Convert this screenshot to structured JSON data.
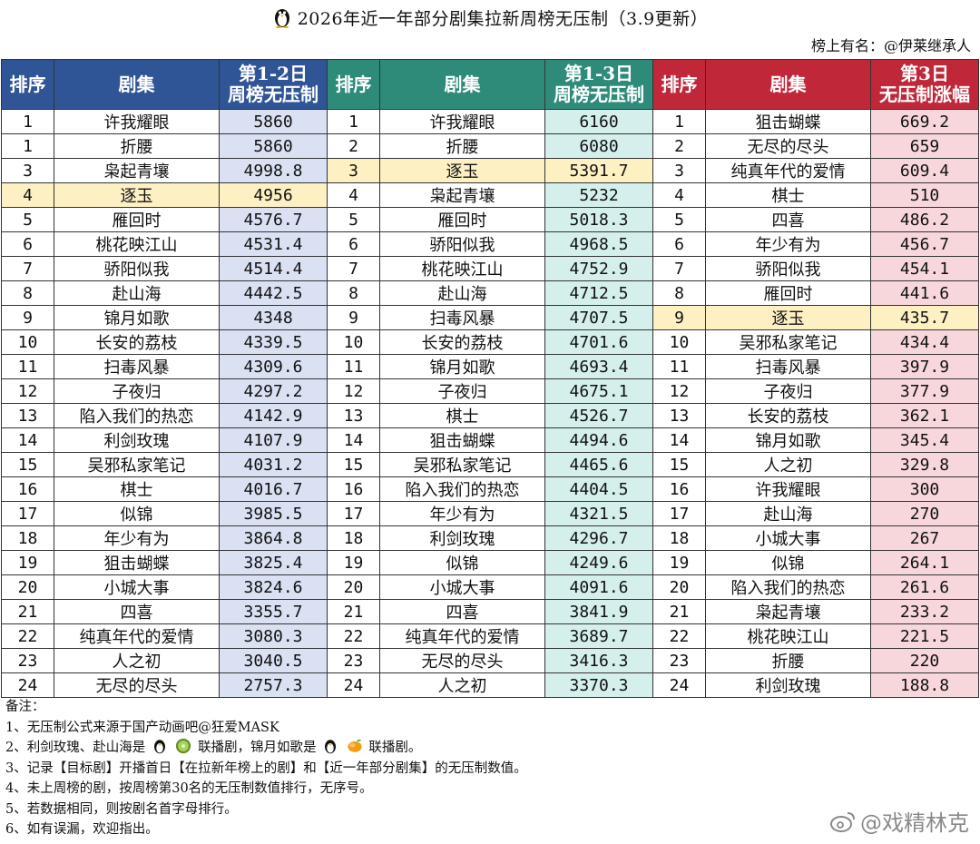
{
  "title": "2026年近一年部分剧集拉新周榜无压制（3.9更新）",
  "subtitle": "榜上有名：@伊莱继承人",
  "headers": {
    "rank": "排序",
    "drama": "剧集",
    "g1_value_line1": "第1-2日",
    "g1_value_line2": "周榜无压制",
    "g2_value_line1": "第1-3日",
    "g2_value_line2": "周榜无压制",
    "g3_value_line1": "第3日",
    "g3_value_line2": "无压制涨幅"
  },
  "colors": {
    "group1_header": "#2f5597",
    "group2_header": "#2e8b7a",
    "group3_header": "#c0283a",
    "highlight": "#fdf0c2"
  },
  "highlighted_drama": "逐玉",
  "rows": [
    {
      "r1": "1",
      "n1": "许我耀眼",
      "v1": "5860",
      "r2": "1",
      "n2": "许我耀眼",
      "v2": "6160",
      "r3": "1",
      "n3": "狙击蝴蝶",
      "v3": "669.2"
    },
    {
      "r1": "1",
      "n1": "折腰",
      "v1": "5860",
      "r2": "2",
      "n2": "折腰",
      "v2": "6080",
      "r3": "2",
      "n3": "无尽的尽头",
      "v3": "659"
    },
    {
      "r1": "3",
      "n1": "枭起青壤",
      "v1": "4998.8",
      "r2": "3",
      "n2": "逐玉",
      "v2": "5391.7",
      "r3": "3",
      "n3": "纯真年代的爱情",
      "v3": "609.4"
    },
    {
      "r1": "4",
      "n1": "逐玉",
      "v1": "4956",
      "r2": "4",
      "n2": "枭起青壤",
      "v2": "5232",
      "r3": "4",
      "n3": "棋士",
      "v3": "510"
    },
    {
      "r1": "5",
      "n1": "雁回时",
      "v1": "4576.7",
      "r2": "5",
      "n2": "雁回时",
      "v2": "5018.3",
      "r3": "5",
      "n3": "四喜",
      "v3": "486.2"
    },
    {
      "r1": "6",
      "n1": "桃花映江山",
      "v1": "4531.4",
      "r2": "6",
      "n2": "骄阳似我",
      "v2": "4968.5",
      "r3": "6",
      "n3": "年少有为",
      "v3": "456.7"
    },
    {
      "r1": "7",
      "n1": "骄阳似我",
      "v1": "4514.4",
      "r2": "7",
      "n2": "桃花映江山",
      "v2": "4752.9",
      "r3": "7",
      "n3": "骄阳似我",
      "v3": "454.1"
    },
    {
      "r1": "8",
      "n1": "赴山海",
      "v1": "4442.5",
      "r2": "8",
      "n2": "赴山海",
      "v2": "4712.5",
      "r3": "8",
      "n3": "雁回时",
      "v3": "441.6"
    },
    {
      "r1": "9",
      "n1": "锦月如歌",
      "v1": "4348",
      "r2": "9",
      "n2": "扫毒风暴",
      "v2": "4707.5",
      "r3": "9",
      "n3": "逐玉",
      "v3": "435.7"
    },
    {
      "r1": "10",
      "n1": "长安的荔枝",
      "v1": "4339.5",
      "r2": "10",
      "n2": "长安的荔枝",
      "v2": "4701.6",
      "r3": "10",
      "n3": "吴邪私家笔记",
      "v3": "434.4"
    },
    {
      "r1": "11",
      "n1": "扫毒风暴",
      "v1": "4309.6",
      "r2": "11",
      "n2": "锦月如歌",
      "v2": "4693.4",
      "r3": "11",
      "n3": "扫毒风暴",
      "v3": "397.9"
    },
    {
      "r1": "12",
      "n1": "子夜归",
      "v1": "4297.2",
      "r2": "12",
      "n2": "子夜归",
      "v2": "4675.1",
      "r3": "12",
      "n3": "子夜归",
      "v3": "377.9"
    },
    {
      "r1": "13",
      "n1": "陷入我们的热恋",
      "v1": "4142.9",
      "r2": "13",
      "n2": "棋士",
      "v2": "4526.7",
      "r3": "13",
      "n3": "长安的荔枝",
      "v3": "362.1"
    },
    {
      "r1": "14",
      "n1": "利剑玫瑰",
      "v1": "4107.9",
      "r2": "14",
      "n2": "狙击蝴蝶",
      "v2": "4494.6",
      "r3": "14",
      "n3": "锦月如歌",
      "v3": "345.4"
    },
    {
      "r1": "15",
      "n1": "吴邪私家笔记",
      "v1": "4031.2",
      "r2": "15",
      "n2": "吴邪私家笔记",
      "v2": "4465.6",
      "r3": "15",
      "n3": "人之初",
      "v3": "329.8"
    },
    {
      "r1": "16",
      "n1": "棋士",
      "v1": "4016.7",
      "r2": "16",
      "n2": "陷入我们的热恋",
      "v2": "4404.5",
      "r3": "16",
      "n3": "许我耀眼",
      "v3": "300"
    },
    {
      "r1": "17",
      "n1": "似锦",
      "v1": "3985.5",
      "r2": "17",
      "n2": "年少有为",
      "v2": "4321.5",
      "r3": "17",
      "n3": "赴山海",
      "v3": "270"
    },
    {
      "r1": "18",
      "n1": "年少有为",
      "v1": "3864.8",
      "r2": "18",
      "n2": "利剑玫瑰",
      "v2": "4296.7",
      "r3": "18",
      "n3": "小城大事",
      "v3": "267"
    },
    {
      "r1": "19",
      "n1": "狙击蝴蝶",
      "v1": "3825.4",
      "r2": "19",
      "n2": "似锦",
      "v2": "4249.6",
      "r3": "19",
      "n3": "似锦",
      "v3": "264.1"
    },
    {
      "r1": "20",
      "n1": "小城大事",
      "v1": "3824.6",
      "r2": "20",
      "n2": "小城大事",
      "v2": "4091.6",
      "r3": "20",
      "n3": "陷入我们的热恋",
      "v3": "261.6"
    },
    {
      "r1": "21",
      "n1": "四喜",
      "v1": "3355.7",
      "r2": "21",
      "n2": "四喜",
      "v2": "3841.9",
      "r3": "21",
      "n3": "枭起青壤",
      "v3": "233.2"
    },
    {
      "r1": "22",
      "n1": "纯真年代的爱情",
      "v1": "3080.3",
      "r2": "22",
      "n2": "纯真年代的爱情",
      "v2": "3689.7",
      "r3": "22",
      "n3": "桃花映江山",
      "v3": "221.5"
    },
    {
      "r1": "23",
      "n1": "人之初",
      "v1": "3040.5",
      "r2": "23",
      "n2": "无尽的尽头",
      "v2": "3416.3",
      "r3": "23",
      "n3": "折腰",
      "v3": "220"
    },
    {
      "r1": "24",
      "n1": "无尽的尽头",
      "v1": "2757.3",
      "r2": "24",
      "n2": "人之初",
      "v2": "3370.3",
      "r3": "24",
      "n3": "利剑玫瑰",
      "v3": "188.8"
    }
  ],
  "notes": {
    "heading": "备注：",
    "n1": "1、无压制公式来源于国产动画吧@狂爱MASK",
    "n2_a": "2、利剑玫瑰、赴山海是",
    "n2_b": "联播剧，锦月如歌是",
    "n2_c": "联播剧。",
    "n3": "3、记录【目标剧】开播首日【在拉新年榜上的剧】和【近一年部分剧集】的无压制数值。",
    "n4": "4、未上周榜的剧，按周榜第30名的无压制数值排行，无序号。",
    "n5": "5、若数据相同，则按剧名首字母排行。",
    "n6": "6、如有误漏，欢迎指出。"
  },
  "icons": {
    "title": "penguin-icon",
    "note2_first": [
      "penguin-icon",
      "kiwi-icon"
    ],
    "note2_second": [
      "penguin-icon",
      "mango-icon"
    ],
    "watermark": "weibo-icon"
  },
  "watermark": "@戏精林克"
}
